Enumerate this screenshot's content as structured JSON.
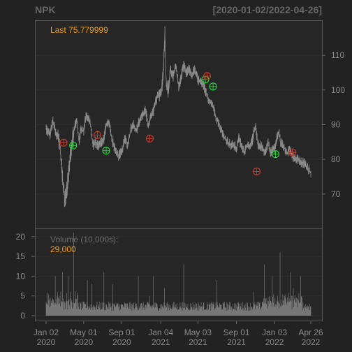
{
  "chart_data": {
    "type": "line",
    "symbol": "NPK",
    "date_range": "[2020-01-02/2022-04-26]",
    "last_label": "Last 75.779999",
    "volume_label": "Volume (10,000s):",
    "volume_last": "29,000",
    "price_ylim": [
      60,
      120
    ],
    "price_ticks": [
      70,
      80,
      90,
      100,
      110
    ],
    "volume_ylim": [
      0,
      22
    ],
    "volume_ticks": [
      0,
      5,
      10,
      15,
      20
    ],
    "x_ticks": [
      {
        "index": 0,
        "line1": "Jan 02",
        "line2": "2020"
      },
      {
        "index": 82,
        "line1": "May 01",
        "line2": "2020"
      },
      {
        "index": 165,
        "line1": "Sep 01",
        "line2": "2020"
      },
      {
        "index": 250,
        "line1": "Jan 04",
        "line2": "2021"
      },
      {
        "index": 331,
        "line1": "May 03",
        "line2": "2021"
      },
      {
        "index": 415,
        "line1": "Sep 01",
        "line2": "2021"
      },
      {
        "index": 498,
        "line1": "Jan 03",
        "line2": "2022"
      },
      {
        "index": 577,
        "line1": "Apr 26",
        "line2": "2022"
      }
    ],
    "price_anchors": [
      [
        0,
        89
      ],
      [
        8,
        87
      ],
      [
        15,
        91
      ],
      [
        22,
        87
      ],
      [
        28,
        86
      ],
      [
        33,
        79
      ],
      [
        38,
        72
      ],
      [
        41,
        68
      ],
      [
        44,
        70
      ],
      [
        47,
        73
      ],
      [
        52,
        81
      ],
      [
        58,
        86
      ],
      [
        63,
        90
      ],
      [
        67,
        91
      ],
      [
        72,
        85
      ],
      [
        76,
        89
      ],
      [
        82,
        88
      ],
      [
        87,
        93
      ],
      [
        92,
        92
      ],
      [
        97,
        90
      ],
      [
        102,
        84
      ],
      [
        108,
        85
      ],
      [
        114,
        84
      ],
      [
        120,
        85
      ],
      [
        126,
        86
      ],
      [
        131,
        90
      ],
      [
        137,
        91
      ],
      [
        143,
        86
      ],
      [
        150,
        83
      ],
      [
        157,
        81
      ],
      [
        165,
        82
      ],
      [
        172,
        86
      ],
      [
        178,
        84
      ],
      [
        185,
        89
      ],
      [
        191,
        90
      ],
      [
        197,
        88
      ],
      [
        203,
        91
      ],
      [
        210,
        93
      ],
      [
        217,
        94
      ],
      [
        222,
        90
      ],
      [
        228,
        92
      ],
      [
        234,
        94
      ],
      [
        240,
        97
      ],
      [
        246,
        99
      ],
      [
        250,
        98
      ],
      [
        255,
        105
      ],
      [
        259,
        116
      ],
      [
        262,
        101
      ],
      [
        266,
        100
      ],
      [
        271,
        106
      ],
      [
        277,
        104
      ],
      [
        283,
        107
      ],
      [
        289,
        101
      ],
      [
        295,
        104
      ],
      [
        300,
        107
      ],
      [
        306,
        105
      ],
      [
        312,
        106
      ],
      [
        318,
        104
      ],
      [
        323,
        106
      ],
      [
        331,
        103
      ],
      [
        338,
        102
      ],
      [
        344,
        101
      ],
      [
        349,
        99
      ],
      [
        355,
        97
      ],
      [
        362,
        96
      ],
      [
        367,
        94
      ],
      [
        371,
        92
      ],
      [
        377,
        90
      ],
      [
        383,
        88
      ],
      [
        389,
        86
      ],
      [
        396,
        85
      ],
      [
        403,
        84
      ],
      [
        410,
        84
      ],
      [
        415,
        83
      ],
      [
        420,
        86
      ],
      [
        426,
        84
      ],
      [
        431,
        82
      ],
      [
        437,
        84
      ],
      [
        443,
        84
      ],
      [
        449,
        85
      ],
      [
        453,
        88
      ],
      [
        457,
        89
      ],
      [
        462,
        84
      ],
      [
        467,
        84
      ],
      [
        473,
        83
      ],
      [
        478,
        82
      ],
      [
        484,
        85
      ],
      [
        489,
        82
      ],
      [
        494,
        83
      ],
      [
        498,
        83
      ],
      [
        503,
        86
      ],
      [
        507,
        88
      ],
      [
        511,
        85
      ],
      [
        516,
        84
      ],
      [
        521,
        83
      ],
      [
        526,
        82
      ],
      [
        531,
        83
      ],
      [
        537,
        81
      ],
      [
        543,
        80
      ],
      [
        549,
        80
      ],
      [
        555,
        79
      ],
      [
        561,
        79
      ],
      [
        567,
        78
      ],
      [
        573,
        77
      ],
      [
        577,
        76
      ]
    ],
    "price_total_points": 578,
    "buy_markers": [
      [
        59,
        84
      ],
      [
        131,
        82.5
      ],
      [
        347,
        103
      ],
      [
        364,
        101
      ],
      [
        500,
        81.5
      ]
    ],
    "sell_markers": [
      [
        38,
        84.8
      ],
      [
        112,
        87
      ],
      [
        226,
        86
      ],
      [
        351,
        104
      ],
      [
        459,
        76.5
      ],
      [
        537,
        82
      ]
    ],
    "volume_spikes": [
      [
        20,
        10
      ],
      [
        36,
        11
      ],
      [
        48,
        10
      ],
      [
        60,
        21
      ],
      [
        90,
        9
      ],
      [
        100,
        8
      ],
      [
        126,
        11
      ],
      [
        145,
        8
      ],
      [
        201,
        10
      ],
      [
        226,
        5
      ],
      [
        234,
        10
      ],
      [
        258,
        7
      ],
      [
        300,
        13
      ],
      [
        372,
        9
      ],
      [
        452,
        6
      ],
      [
        476,
        13
      ],
      [
        493,
        10
      ],
      [
        510,
        16
      ],
      [
        532,
        11
      ],
      [
        539,
        7
      ],
      [
        555,
        10
      ]
    ],
    "colors": {
      "background": "#222222",
      "panel": "#2a2a2a",
      "border": "#555555",
      "price_line": "#8a8a8a",
      "volume_bar": "#777777",
      "buy": "#2ecc40",
      "sell": "#c0392b",
      "accent": "#f39c12"
    }
  }
}
